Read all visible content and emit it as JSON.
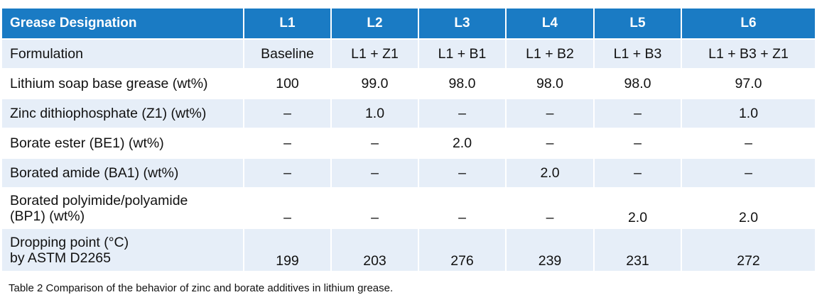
{
  "table": {
    "header": {
      "label": "Grease Designation",
      "columns": [
        "L1",
        "L2",
        "L3",
        "L4",
        "L5",
        "L6"
      ]
    },
    "rows": [
      {
        "label_lines": [
          "Formulation"
        ],
        "cells": [
          "Baseline",
          "L1 + Z1",
          "L1 + B1",
          "L1 + B2",
          "L1 + B3",
          "L1 + B3 + Z1"
        ]
      },
      {
        "label_lines": [
          "Lithium soap base grease (wt%)"
        ],
        "cells": [
          "100",
          "99.0",
          "98.0",
          "98.0",
          "98.0",
          "97.0"
        ]
      },
      {
        "label_lines": [
          "Zinc dithiophosphate (Z1) (wt%)"
        ],
        "cells": [
          "–",
          "1.0",
          "–",
          "–",
          "–",
          "1.0"
        ]
      },
      {
        "label_lines": [
          "Borate ester (BE1) (wt%)"
        ],
        "cells": [
          "–",
          "–",
          "2.0",
          "–",
          "–",
          "–"
        ]
      },
      {
        "label_lines": [
          "Borated amide (BA1) (wt%)"
        ],
        "cells": [
          "–",
          "–",
          "–",
          "2.0",
          "–",
          "–"
        ]
      },
      {
        "label_lines": [
          "Borated polyimide/polyamide",
          "(BP1) (wt%)"
        ],
        "cells": [
          "–",
          "–",
          "–",
          "–",
          "2.0",
          "2.0"
        ]
      },
      {
        "label_lines": [
          "Dropping point (°C)",
          "by ASTM D2265"
        ],
        "cells": [
          "199",
          "203",
          "276",
          "239",
          "231",
          "272"
        ]
      }
    ]
  },
  "caption": "Table 2 Comparison of the behavior of zinc and borate additives in lithium grease.",
  "colors": {
    "header_bg": "#1a7bc4",
    "header_text": "#ffffff",
    "stripe_bg": "#e6eef8",
    "row_bg": "#ffffff"
  }
}
